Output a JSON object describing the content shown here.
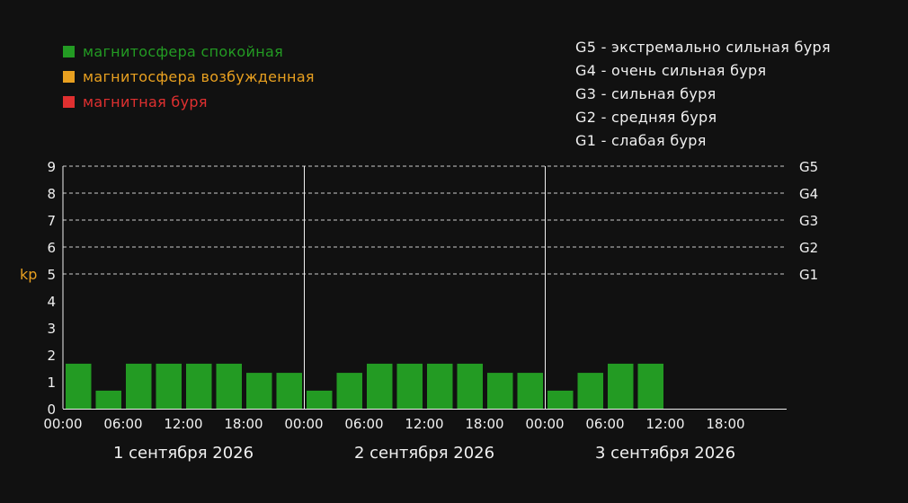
{
  "colors": {
    "background": "#111111",
    "quiet": "#239b23",
    "active": "#e8a020",
    "storm": "#e03030",
    "text": "#f0f0f0",
    "ylabel": "#e8a020",
    "grid": "#cccccc"
  },
  "legend": {
    "items": [
      {
        "label": "магнитосфера спокойная",
        "color": "#239b23"
      },
      {
        "label": "магнитосфера возбужденная",
        "color": "#e8a020"
      },
      {
        "label": "магнитная буря",
        "color": "#e03030"
      }
    ]
  },
  "storm_scale": [
    {
      "label": "G5 - экстремально сильная буря"
    },
    {
      "label": "G4 - очень сильная буря"
    },
    {
      "label": "G3 - сильная буря"
    },
    {
      "label": "G2 - средняя буря"
    },
    {
      "label": "G1 - слабая буря"
    }
  ],
  "chart_data": {
    "type": "bar",
    "ylabel": "kp",
    "ylim": [
      0,
      9
    ],
    "yticks": [
      0,
      1,
      2,
      3,
      4,
      5,
      6,
      7,
      8,
      9
    ],
    "gridlines": [
      {
        "value": 9,
        "label": "G5"
      },
      {
        "value": 8,
        "label": "G4"
      },
      {
        "value": 7,
        "label": "G3"
      },
      {
        "value": 6,
        "label": "G2"
      },
      {
        "value": 5,
        "label": "G1"
      }
    ],
    "time_ticks": [
      "00:00",
      "06:00",
      "12:00",
      "18:00"
    ],
    "days": [
      {
        "label": "1 сентября 2026",
        "values": [
          1.67,
          0.67,
          1.67,
          1.67,
          1.67,
          1.67,
          1.33,
          1.33
        ]
      },
      {
        "label": "2 сентября 2026",
        "values": [
          0.67,
          1.33,
          1.67,
          1.67,
          1.67,
          1.67,
          1.33,
          1.33
        ]
      },
      {
        "label": "3 сентября 2026",
        "values": [
          0.67,
          1.33,
          1.67,
          1.67
        ]
      }
    ],
    "slots_per_day": 8,
    "bar_color": "#239b23"
  }
}
